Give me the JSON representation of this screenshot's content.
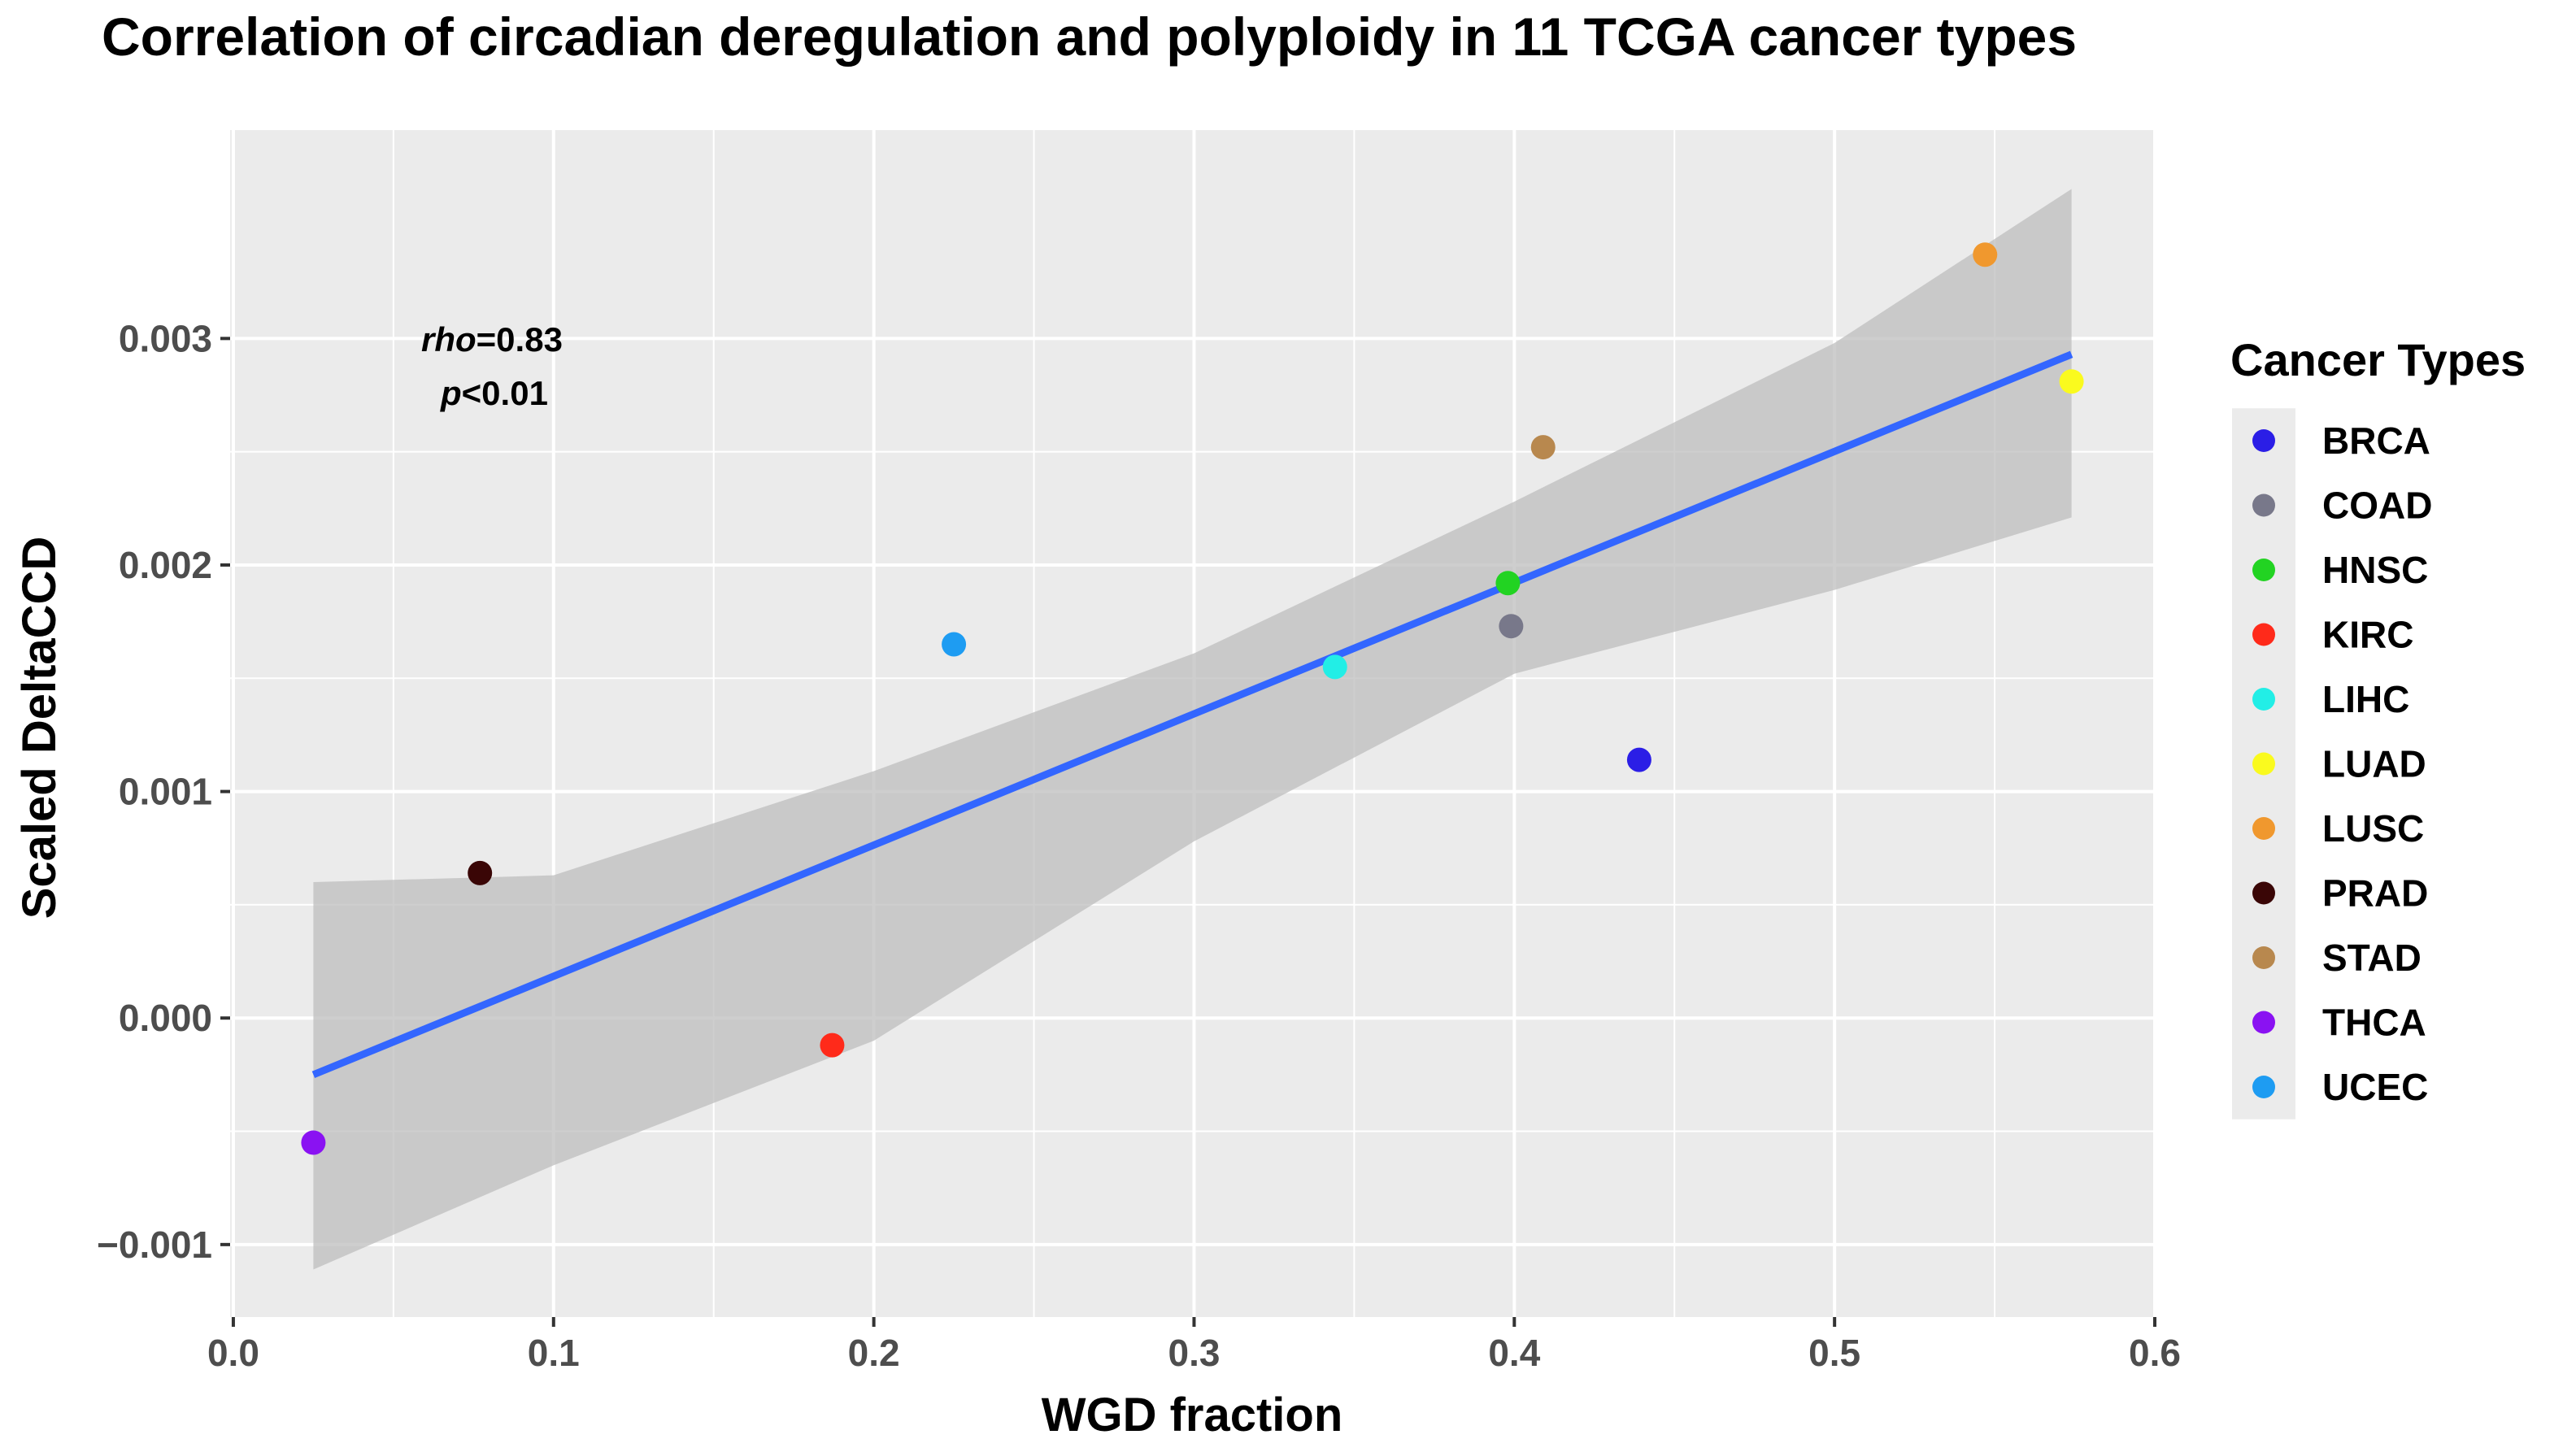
{
  "chart_data": {
    "type": "scatter",
    "title": "Correlation of circadian deregulation and polyploidy in 11 TCGA cancer types",
    "xlabel": "WGD  fraction",
    "ylabel": "Scaled  DeltaCCD",
    "xlim": [
      -0.001,
      0.6
    ],
    "ylim": [
      -0.00132,
      0.00392
    ],
    "x_ticks": [
      0.0,
      0.1,
      0.2,
      0.3,
      0.4,
      0.5,
      0.6
    ],
    "x_tick_labels": [
      "0.0",
      "0.1",
      "0.2",
      "0.3",
      "0.4",
      "0.5",
      "0.6"
    ],
    "y_ticks": [
      -0.001,
      0.0,
      0.001,
      0.002,
      0.003
    ],
    "y_tick_labels": [
      "−0.001",
      "0.000",
      "0.001",
      "0.002",
      "0.003"
    ],
    "grid": true,
    "legend_position": "right",
    "legend_title": "Cancer  Types",
    "points": [
      {
        "label": "BRCA",
        "x": 0.439,
        "y": 0.00114,
        "color": "#2b1ee6"
      },
      {
        "label": "COAD",
        "x": 0.399,
        "y": 0.00173,
        "color": "#78788a"
      },
      {
        "label": "HNSC",
        "x": 0.398,
        "y": 0.00192,
        "color": "#22d322"
      },
      {
        "label": "KIRC",
        "x": 0.187,
        "y": -0.00012,
        "color": "#ff2a1a"
      },
      {
        "label": "LIHC",
        "x": 0.344,
        "y": 0.00155,
        "color": "#22eee6"
      },
      {
        "label": "LUAD",
        "x": 0.574,
        "y": 0.00281,
        "color": "#fafa1e"
      },
      {
        "label": "LUSC",
        "x": 0.547,
        "y": 0.00337,
        "color": "#f0982e"
      },
      {
        "label": "PRAD",
        "x": 0.077,
        "y": 0.00064,
        "color": "#3a0606"
      },
      {
        "label": "STAD",
        "x": 0.409,
        "y": 0.00252,
        "color": "#b8884e"
      },
      {
        "label": "THCA",
        "x": 0.025,
        "y": -0.00055,
        "color": "#8a12f2"
      },
      {
        "label": "UCEC",
        "x": 0.225,
        "y": 0.00165,
        "color": "#1e9cf2"
      }
    ],
    "fit_line": {
      "x": [
        0.025,
        0.574
      ],
      "y": [
        -0.00025,
        0.00293
      ],
      "color": "#3366ff"
    },
    "confidence_band": {
      "x": [
        0.025,
        0.1,
        0.2,
        0.3,
        0.4,
        0.5,
        0.574
      ],
      "lower": [
        -0.00111,
        -0.00065,
        -0.0001,
        0.00078,
        0.00152,
        0.00189,
        0.00221
      ],
      "upper": [
        0.0006,
        0.00063,
        0.00109,
        0.00161,
        0.00228,
        0.00298,
        0.00366
      ],
      "color": "#bdbdbd"
    },
    "annotation": {
      "rho_label": "rho",
      "rho_value": "=0.83",
      "p_label": "p",
      "p_value": "<0.01"
    },
    "colors": {
      "panel_background": "#ebebeb",
      "grid": "#ffffff",
      "legend_key_background": "#ebebeb"
    }
  }
}
